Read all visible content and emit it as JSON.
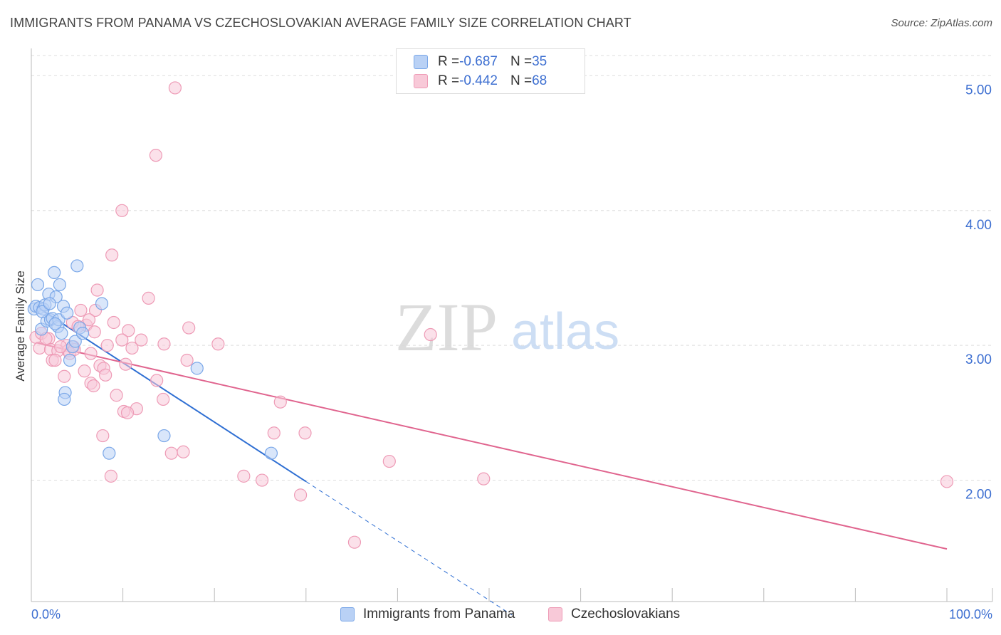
{
  "header": {
    "title": "IMMIGRANTS FROM PANAMA VS CZECHOSLOVAKIAN AVERAGE FAMILY SIZE CORRELATION CHART",
    "source": "Source: ZipAtlas.com"
  },
  "colors": {
    "blue": "#7aa7e8",
    "blue_fill": "#b9d1f5",
    "blue_line": "#2f6fd3",
    "pink": "#ee9bb6",
    "pink_fill": "#f8c9d8",
    "pink_line": "#e0648e",
    "axis_label": "#3d6fd1",
    "grid": "#dddddd"
  },
  "legend": {
    "rows": [
      {
        "r_label": "R = ",
        "r_value": "-0.687",
        "n_label": "N = ",
        "n_value": "35"
      },
      {
        "r_label": "R = ",
        "r_value": "-0.442",
        "n_label": "N = ",
        "n_value": "68"
      }
    ]
  },
  "bottom_legend": {
    "series1": "Immigrants from Panama",
    "series2": "Czechoslovakians"
  },
  "watermark": {
    "zip": "ZIP",
    "atlas": "atlas"
  },
  "chart_data": {
    "type": "scatter",
    "title": "IMMIGRANTS FROM PANAMA VS CZECHOSLOVAKIAN AVERAGE FAMILY SIZE CORRELATION CHART",
    "xlabel": "",
    "ylabel": "Average Family Size",
    "xlim": [
      0,
      100
    ],
    "ylim": [
      1.1,
      5.15
    ],
    "x_tick_labels": [
      "0.0%",
      "100.0%"
    ],
    "y_ticks": [
      2.0,
      3.0,
      4.0,
      5.0
    ],
    "y_tick_labels": [
      "2.00",
      "3.00",
      "4.00",
      "5.00"
    ],
    "grid": true,
    "series": [
      {
        "name": "Immigrants from Panama",
        "points": [
          [
            0.3,
            3.27
          ],
          [
            0.5,
            3.29
          ],
          [
            0.7,
            3.45
          ],
          [
            0.9,
            3.28
          ],
          [
            1.1,
            3.12
          ],
          [
            1.3,
            3.27
          ],
          [
            1.5,
            3.3
          ],
          [
            1.7,
            3.18
          ],
          [
            1.9,
            3.38
          ],
          [
            2.1,
            3.19
          ],
          [
            2.3,
            3.2
          ],
          [
            2.5,
            3.54
          ],
          [
            2.7,
            3.36
          ],
          [
            2.9,
            3.14
          ],
          [
            3.1,
            3.45
          ],
          [
            3.3,
            3.09
          ],
          [
            3.5,
            3.29
          ],
          [
            3.0,
            3.19
          ],
          [
            2.6,
            3.16
          ],
          [
            3.7,
            2.65
          ],
          [
            3.6,
            2.6
          ],
          [
            3.9,
            3.24
          ],
          [
            4.2,
            2.89
          ],
          [
            4.5,
            2.99
          ],
          [
            4.8,
            3.03
          ],
          [
            5.0,
            3.59
          ],
          [
            5.3,
            3.13
          ],
          [
            5.6,
            3.09
          ],
          [
            7.7,
            3.31
          ],
          [
            8.5,
            2.2
          ],
          [
            14.5,
            2.33
          ],
          [
            18.1,
            2.83
          ],
          [
            26.2,
            2.2
          ],
          [
            1.2,
            3.25
          ],
          [
            2.0,
            3.31
          ]
        ],
        "trend": {
          "x": [
            0.5,
            30.0
          ],
          "y": [
            3.29,
            1.99
          ],
          "dashed_extension": {
            "x": [
              30.0,
              52.5
            ],
            "y": [
              1.99,
              1.0
            ]
          }
        }
      },
      {
        "name": "Czechoslovakians",
        "points": [
          [
            15.7,
            4.91
          ],
          [
            13.6,
            4.41
          ],
          [
            9.9,
            4.0
          ],
          [
            8.8,
            3.67
          ],
          [
            7.2,
            3.41
          ],
          [
            12.8,
            3.35
          ],
          [
            5.4,
            3.26
          ],
          [
            7.0,
            3.26
          ],
          [
            9.0,
            3.17
          ],
          [
            6.0,
            3.15
          ],
          [
            4.5,
            3.17
          ],
          [
            10.6,
            3.11
          ],
          [
            17.2,
            3.13
          ],
          [
            6.9,
            3.1
          ],
          [
            0.5,
            3.06
          ],
          [
            1.1,
            3.09
          ],
          [
            1.9,
            3.05
          ],
          [
            3.9,
            3.0
          ],
          [
            4.6,
            2.99
          ],
          [
            8.3,
            3.0
          ],
          [
            11.0,
            2.98
          ],
          [
            14.5,
            3.01
          ],
          [
            20.4,
            3.01
          ],
          [
            0.9,
            2.98
          ],
          [
            2.1,
            2.97
          ],
          [
            2.9,
            2.96
          ],
          [
            4.0,
            2.96
          ],
          [
            9.9,
            3.04
          ],
          [
            4.2,
            2.94
          ],
          [
            2.3,
            2.89
          ],
          [
            2.6,
            2.89
          ],
          [
            6.5,
            2.94
          ],
          [
            7.5,
            2.85
          ],
          [
            17.0,
            2.89
          ],
          [
            5.8,
            2.81
          ],
          [
            7.9,
            2.83
          ],
          [
            8.1,
            2.78
          ],
          [
            10.3,
            2.86
          ],
          [
            3.6,
            2.77
          ],
          [
            6.5,
            2.72
          ],
          [
            6.8,
            2.7
          ],
          [
            13.7,
            2.74
          ],
          [
            9.3,
            2.63
          ],
          [
            14.4,
            2.6
          ],
          [
            27.2,
            2.58
          ],
          [
            11.5,
            2.53
          ],
          [
            10.1,
            2.51
          ],
          [
            10.5,
            2.5
          ],
          [
            7.8,
            2.33
          ],
          [
            26.5,
            2.35
          ],
          [
            29.9,
            2.35
          ],
          [
            15.3,
            2.2
          ],
          [
            16.6,
            2.21
          ],
          [
            39.1,
            2.14
          ],
          [
            8.7,
            2.03
          ],
          [
            23.2,
            2.03
          ],
          [
            25.2,
            2.0
          ],
          [
            49.4,
            2.01
          ],
          [
            29.4,
            1.89
          ],
          [
            35.3,
            1.54
          ],
          [
            43.6,
            3.08
          ],
          [
            100.0,
            1.99
          ],
          [
            4.7,
            2.97
          ],
          [
            3.2,
            2.99
          ],
          [
            1.6,
            3.05
          ],
          [
            5.1,
            3.14
          ],
          [
            12.0,
            3.04
          ],
          [
            6.3,
            3.19
          ]
        ],
        "trend": {
          "x": [
            0.5,
            100.0
          ],
          "y": [
            3.02,
            1.49
          ]
        }
      }
    ]
  }
}
